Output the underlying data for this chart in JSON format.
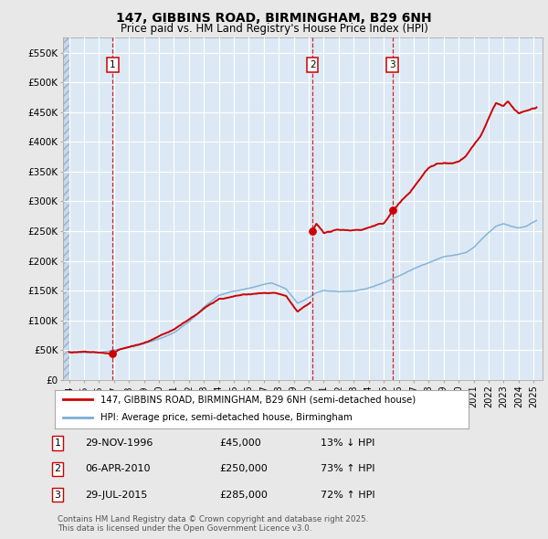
{
  "title1": "147, GIBBINS ROAD, BIRMINGHAM, B29 6NH",
  "title2": "Price paid vs. HM Land Registry's House Price Index (HPI)",
  "bg_color": "#dce9f5",
  "fig_bg_color": "#e8e8e8",
  "grid_color": "#ffffff",
  "red_color": "#cc0000",
  "blue_color": "#7bafd4",
  "ylim": [
    0,
    575000
  ],
  "yticks": [
    0,
    50000,
    100000,
    150000,
    200000,
    250000,
    300000,
    350000,
    400000,
    450000,
    500000,
    550000
  ],
  "ytick_labels": [
    "£0",
    "£50K",
    "£100K",
    "£150K",
    "£200K",
    "£250K",
    "£300K",
    "£350K",
    "£400K",
    "£450K",
    "£500K",
    "£550K"
  ],
  "sale_times": [
    1996.917,
    2010.25,
    2015.583
  ],
  "sale_prices": [
    45000,
    250000,
    285000
  ],
  "sale_labels": [
    "1",
    "2",
    "3"
  ],
  "legend_label_red": "147, GIBBINS ROAD, BIRMINGHAM, B29 6NH (semi-detached house)",
  "legend_label_blue": "HPI: Average price, semi-detached house, Birmingham",
  "copyright_text": "Contains HM Land Registry data © Crown copyright and database right 2025.\nThis data is licensed under the Open Government Licence v3.0.",
  "ann_dates": [
    "29-NOV-1996",
    "06-APR-2010",
    "29-JUL-2015"
  ],
  "ann_prices": [
    "£45,000",
    "£250,000",
    "£285,000"
  ],
  "ann_pcts": [
    "13% ↓ HPI",
    "73% ↑ HPI",
    "72% ↑ HPI"
  ],
  "hpi_anchors_t": [
    1994.0,
    1995.0,
    1996.0,
    1997.0,
    1998.0,
    1999.0,
    2000.0,
    2001.0,
    2002.0,
    2003.0,
    2004.0,
    2005.0,
    2006.0,
    2007.0,
    2007.5,
    2008.5,
    2009.25,
    2009.75,
    2010.5,
    2011.0,
    2012.0,
    2013.0,
    2014.0,
    2015.0,
    2016.0,
    2017.0,
    2018.0,
    2019.0,
    2020.0,
    2020.5,
    2021.0,
    2022.0,
    2022.5,
    2023.0,
    2023.5,
    2024.0,
    2024.5,
    2025.2
  ],
  "hpi_anchors_v": [
    47000,
    46500,
    47500,
    51000,
    56000,
    62000,
    70000,
    80000,
    98000,
    122000,
    142000,
    149000,
    154000,
    160000,
    162000,
    152000,
    128000,
    133000,
    145000,
    149000,
    146000,
    148000,
    153000,
    162000,
    174000,
    187000,
    197000,
    207000,
    210000,
    213000,
    222000,
    247000,
    258000,
    262000,
    258000,
    255000,
    258000,
    268000
  ],
  "prop_anchors1_t": [
    1994.0,
    1995.0,
    1996.0,
    1996.917,
    1997.5,
    1999.0,
    2001.0,
    2002.5,
    2004.0,
    2005.5,
    2007.0,
    2007.75,
    2008.5,
    2009.25,
    2010.1
  ],
  "prop_anchors1_v": [
    47000,
    47500,
    46500,
    45000,
    53000,
    63000,
    83000,
    110000,
    137000,
    143000,
    146000,
    148000,
    142000,
    116000,
    130000
  ],
  "prop_anchors2_t": [
    2010.25,
    2010.5,
    2010.75,
    2011.0,
    2011.5,
    2012.0,
    2013.0,
    2013.5,
    2014.0,
    2015.0,
    2015.583,
    2016.0,
    2016.5,
    2017.0,
    2017.5,
    2018.0,
    2018.5,
    2019.0,
    2019.5,
    2020.0,
    2020.5,
    2021.0,
    2021.5,
    2022.0,
    2022.5,
    2023.0,
    2023.3,
    2023.7,
    2024.0,
    2024.5,
    2025.2
  ],
  "prop_anchors2_v": [
    250000,
    262000,
    255000,
    248000,
    250000,
    252000,
    253000,
    254000,
    258000,
    264000,
    285000,
    298000,
    310000,
    325000,
    342000,
    358000,
    365000,
    366000,
    368000,
    372000,
    382000,
    398000,
    415000,
    442000,
    468000,
    462000,
    470000,
    455000,
    448000,
    452000,
    458000
  ]
}
